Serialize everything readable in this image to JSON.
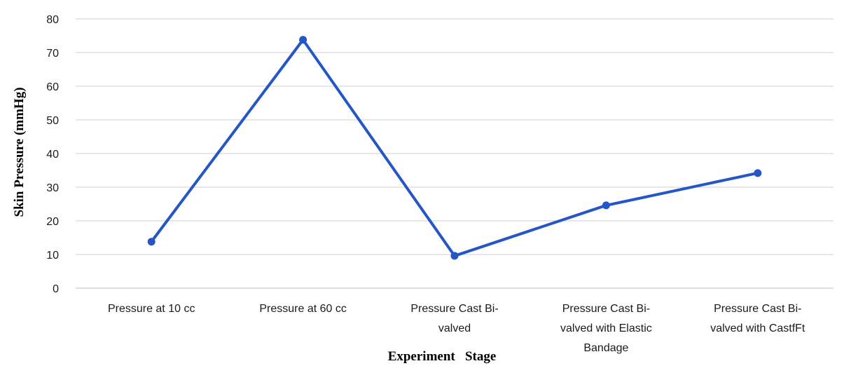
{
  "chart_data": {
    "type": "line",
    "title": "",
    "xlabel": "Experiment   Stage",
    "ylabel": "Skin Pressure (mmHg)",
    "ylim": [
      0,
      80
    ],
    "yticks": [
      0,
      10,
      20,
      30,
      40,
      50,
      60,
      70,
      80
    ],
    "grid": true,
    "legend": "none",
    "categories": [
      [
        "Pressure at 10 cc"
      ],
      [
        "Pressure at 60 cc"
      ],
      [
        "Pressure Cast Bi-",
        "valved"
      ],
      [
        "Pressure Cast Bi-",
        "valved with Elastic",
        "Bandage"
      ],
      [
        "Pressure Cast Bi-",
        "valved with CastfFt"
      ]
    ],
    "series": [
      {
        "values": [
          13.8,
          73.8,
          9.6,
          24.6,
          34.2
        ]
      }
    ],
    "colors": {
      "line": "#2457c5",
      "grid": "#d0d0d0"
    }
  }
}
